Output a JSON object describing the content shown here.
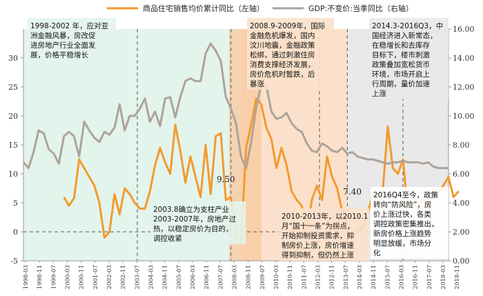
{
  "colors": {
    "sales_line": "#f39a2e",
    "gdp_line": "#ada39a",
    "zone_green": "#e3f4ec",
    "zone_orange": "#fbe1cb",
    "zone_grey": "#e9e9e9",
    "strong_band": "#f8c89f",
    "dashed": "#555555",
    "axis": "#999999"
  },
  "chart_data": {
    "type": "line",
    "title": "",
    "legend_position": "top-center",
    "x_labels": [
      "1998-03",
      "1998-11",
      "1999-07",
      "2000-03",
      "2000-11",
      "2001-07",
      "2002-03",
      "2002-11",
      "2003-07",
      "2004-03",
      "2004-11",
      "2005-07",
      "2006-03",
      "2006-11",
      "2007-07",
      "2008-03",
      "2008-11",
      "2009-07",
      "2010-03",
      "2010-11",
      "2011-07",
      "2012-03",
      "2012-11",
      "2013-07",
      "2014-03",
      "2014-11",
      "2015-07",
      "2016-03",
      "2016-11",
      "2017-07",
      "2018-03",
      "2018-11"
    ],
    "x_range_quarters": [
      0,
      84
    ],
    "left_axis": {
      "label": "左轴",
      "range": [
        -5,
        35
      ],
      "ticks": [
        -5,
        0,
        5,
        10,
        15,
        20,
        25,
        30
      ]
    },
    "right_axis": {
      "label": "右轴",
      "range": [
        0,
        16
      ],
      "ticks": [
        "0.00",
        "2.00",
        "4.00",
        "6.00",
        "8.00",
        "10.00",
        "12.00",
        "14.00",
        "16.00"
      ]
    },
    "series": [
      {
        "name": "商品住宅销售均价累计同比（左轴）",
        "axis": "left",
        "start_quarter": 8,
        "values": [
          6.0,
          4.5,
          5.8,
          12.5,
          11.0,
          9.5,
          8.0,
          5.0,
          -1.0,
          0.0,
          6.5,
          3.0,
          7.5,
          6.5,
          5.0,
          4.0,
          4.0,
          7.0,
          11.5,
          14.5,
          12.0,
          10.0,
          18.5,
          14.0,
          8.5,
          13.0,
          9.5,
          6.0,
          15.0,
          6.5,
          16.5,
          17.0,
          5.5,
          6.0,
          -1.0,
          -2.0,
          14.5,
          18.5,
          23.0,
          22.0,
          18.0,
          16.0,
          11.0,
          14.5,
          11.5,
          7.0,
          5.5,
          4.5,
          0.5,
          5.5,
          8.0,
          5.5,
          13.0,
          9.5,
          7.5,
          3.5,
          0.5,
          -1.0,
          0.5,
          0.5,
          3.0,
          6.5,
          6.5,
          7.0,
          18.2,
          11.0,
          10.0,
          12.5,
          3.5,
          5.0,
          4.0,
          6.0,
          3.5,
          7.5,
          7.0,
          8.0,
          9.5,
          6.0,
          7.0
        ]
      },
      {
        "name": "GDP:不变价:当季同比（右轴）",
        "axis": "right",
        "start_quarter": 0,
        "values": [
          6.8,
          6.4,
          7.5,
          9.0,
          8.8,
          7.7,
          7.4,
          6.7,
          8.6,
          8.9,
          8.6,
          7.2,
          9.6,
          9.0,
          8.5,
          8.2,
          8.9,
          8.7,
          9.2,
          10.8,
          9.0,
          10.0,
          10.0,
          10.5,
          11.2,
          9.6,
          10.3,
          9.3,
          11.2,
          11.3,
          9.9,
          11.3,
          12.4,
          12.6,
          12.4,
          12.4,
          14.3,
          15.0,
          14.5,
          13.8,
          11.3,
          10.5,
          9.5,
          7.2,
          6.4,
          8.2,
          10.6,
          12.2,
          12.1,
          10.3,
          9.8,
          9.9,
          10.2,
          9.5,
          9.1,
          8.9,
          8.1,
          7.6,
          7.5,
          8.1,
          7.9,
          7.6,
          7.5,
          7.8,
          7.4,
          7.5,
          7.2,
          7.1,
          7.0,
          7.0,
          6.9,
          6.8,
          6.7,
          6.8,
          6.8,
          6.9,
          6.8,
          6.8,
          6.8,
          6.7,
          6.8,
          6.5,
          6.4,
          6.4,
          6.4
        ]
      }
    ],
    "annotations": [
      {
        "text": "9.50",
        "quarter": 40,
        "value_left": 9.5
      },
      {
        "text": "7.40",
        "quarter": 65,
        "value_left": 7.4
      }
    ],
    "periods": [
      {
        "id": "p1",
        "text": "1998-2002 年，应对亚洲金融风暴，房改促进房地产行业全面发展，价格平稳增长",
        "start": 0,
        "end": 20
      },
      {
        "id": "p2",
        "text": "2003.8确立为支柱产业 2003-2007年，房地产过热，以稳定房价为目的，调控收紧",
        "start": 20,
        "end": 43
      },
      {
        "id": "p3",
        "text": "2008.9-2009年，国际金融危机爆发，国内汶川地震，金融政策松绑，通过刺激住房消费支撑经济发展，房价危机时暂跌，后暴涨",
        "start": 43,
        "end": 48
      },
      {
        "id": "p4",
        "text": "2010-2013年，以2010.1月“国十一条”为拐点，开始抑制投资需求，抑制房价上涨，房价增速得到抑制，但仍然上涨",
        "start": 48,
        "end": 64
      },
      {
        "id": "p5",
        "text": "2014.3-2016Q3，中国经济进入新常态，在稳增长和去库存目标下，楼市刺激政策叠加宽松货币环境，市场开启上行周期，量价加速上涨",
        "start": 64,
        "end": 74
      },
      {
        "id": "p6",
        "text": "2016Q4至今，政策转向“防风险”，房价上涨过快，各类调控政策密集推出，新房价格上涨趋势明显放缓，市场分化",
        "start": 74,
        "end": 84
      }
    ]
  },
  "legend": {
    "sales": "商品住宅销售均价累计同比（左轴）",
    "gdp": "GDP:不变价:当季同比（右轴）"
  },
  "annotations_text": {
    "p1": [
      "1998-2002 年，应对亚",
      "洲金融风暴，房改促",
      "进房地产行业全面发",
      "展，价格平稳增长"
    ],
    "p2": [
      "2003.8确立为支柱产业",
      "2003-2007年，房地产过",
      "热，以稳定房价为目的，",
      "调控收紧"
    ],
    "p3": [
      "2008.9-2009年，国际",
      "金融危机爆发，国内",
      "汶川地震，金融政策",
      "松绑，通过刺激住房",
      "消费支撑经济发展，",
      "房价危机时暂跌，后",
      "暴涨"
    ],
    "p4": [
      "2010-2013年，以2010.1",
      "月“国十一条”为拐点，",
      "开始抑制投资需求，抑",
      "制房价上涨，房价增速",
      "得到抑制，但仍然上涨"
    ],
    "p5": [
      "2014.3-2016Q3，中",
      "国经济进入新常态，",
      "在稳增长和去库存",
      "目标下，楼市刺激",
      "政策叠加宽松货币",
      "环境，市场开启上",
      "行周期，量价加速",
      "上涨"
    ],
    "p6": [
      "2016Q4至今，政策",
      "转向“防风险”，房",
      "价上涨过快，各类",
      "调控政策密集推出，",
      "新房价格上涨趋势",
      "明显放缓，市场分",
      "化"
    ]
  }
}
